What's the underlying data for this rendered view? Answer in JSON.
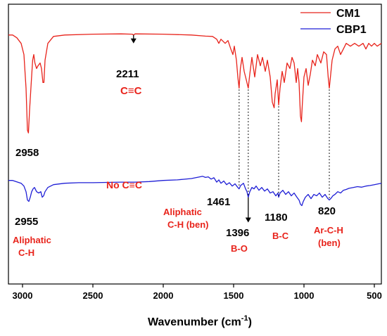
{
  "chart_data": {
    "type": "line",
    "xlabel": "Wavenumber (cm",
    "xlabel_sup": "-1",
    "xlabel_close": ")",
    "ylabel": "",
    "xlim": [
      3100,
      450
    ],
    "x_reversed": true,
    "x_ticks": [
      {
        "value": 3000,
        "label": "3000"
      },
      {
        "value": 2500,
        "label": "2500"
      },
      {
        "value": 2000,
        "label": "2000"
      },
      {
        "value": 1500,
        "label": "1500"
      },
      {
        "value": 1000,
        "label": "1000"
      },
      {
        "value": 500,
        "label": "500"
      }
    ],
    "ylim": [
      0,
      1
    ],
    "y_ticks_shown": false,
    "grid": false,
    "legend_placement": "top-right",
    "series": [
      {
        "name": "CM1",
        "color": "#e8231b",
        "points": [
          [
            3100,
            0.89
          ],
          [
            3070,
            0.89
          ],
          [
            3040,
            0.88
          ],
          [
            3010,
            0.86
          ],
          [
            2990,
            0.82
          ],
          [
            2975,
            0.7
          ],
          [
            2965,
            0.55
          ],
          [
            2958,
            0.54
          ],
          [
            2950,
            0.62
          ],
          [
            2938,
            0.72
          ],
          [
            2928,
            0.8
          ],
          [
            2920,
            0.82
          ],
          [
            2912,
            0.79
          ],
          [
            2900,
            0.77
          ],
          [
            2890,
            0.78
          ],
          [
            2875,
            0.79
          ],
          [
            2865,
            0.77
          ],
          [
            2855,
            0.72
          ],
          [
            2848,
            0.72
          ],
          [
            2840,
            0.8
          ],
          [
            2820,
            0.86
          ],
          [
            2780,
            0.885
          ],
          [
            2700,
            0.89
          ],
          [
            2500,
            0.893
          ],
          [
            2300,
            0.894
          ],
          [
            2220,
            0.893
          ],
          [
            2211,
            0.89
          ],
          [
            2200,
            0.894
          ],
          [
            2000,
            0.893
          ],
          [
            1800,
            0.89
          ],
          [
            1700,
            0.886
          ],
          [
            1650,
            0.885
          ],
          [
            1620,
            0.875
          ],
          [
            1605,
            0.86
          ],
          [
            1590,
            0.875
          ],
          [
            1560,
            0.86
          ],
          [
            1540,
            0.87
          ],
          [
            1520,
            0.84
          ],
          [
            1505,
            0.82
          ],
          [
            1495,
            0.85
          ],
          [
            1480,
            0.8
          ],
          [
            1470,
            0.74
          ],
          [
            1461,
            0.7
          ],
          [
            1452,
            0.77
          ],
          [
            1440,
            0.81
          ],
          [
            1425,
            0.76
          ],
          [
            1410,
            0.73
          ],
          [
            1396,
            0.7
          ],
          [
            1385,
            0.75
          ],
          [
            1370,
            0.81
          ],
          [
            1350,
            0.74
          ],
          [
            1330,
            0.82
          ],
          [
            1310,
            0.78
          ],
          [
            1295,
            0.81
          ],
          [
            1275,
            0.76
          ],
          [
            1260,
            0.8
          ],
          [
            1240,
            0.74
          ],
          [
            1225,
            0.65
          ],
          [
            1212,
            0.63
          ],
          [
            1205,
            0.68
          ],
          [
            1190,
            0.73
          ],
          [
            1180,
            0.64
          ],
          [
            1170,
            0.7
          ],
          [
            1155,
            0.76
          ],
          [
            1140,
            0.72
          ],
          [
            1120,
            0.79
          ],
          [
            1100,
            0.77
          ],
          [
            1085,
            0.81
          ],
          [
            1070,
            0.79
          ],
          [
            1055,
            0.72
          ],
          [
            1045,
            0.77
          ],
          [
            1035,
            0.72
          ],
          [
            1025,
            0.6
          ],
          [
            1018,
            0.58
          ],
          [
            1012,
            0.64
          ],
          [
            1000,
            0.74
          ],
          [
            985,
            0.77
          ],
          [
            970,
            0.71
          ],
          [
            955,
            0.75
          ],
          [
            940,
            0.8
          ],
          [
            920,
            0.78
          ],
          [
            905,
            0.82
          ],
          [
            880,
            0.79
          ],
          [
            860,
            0.83
          ],
          [
            840,
            0.82
          ],
          [
            828,
            0.74
          ],
          [
            820,
            0.7
          ],
          [
            812,
            0.74
          ],
          [
            800,
            0.8
          ],
          [
            780,
            0.84
          ],
          [
            760,
            0.85
          ],
          [
            740,
            0.82
          ],
          [
            720,
            0.84
          ],
          [
            700,
            0.86
          ],
          [
            670,
            0.85
          ],
          [
            640,
            0.86
          ],
          [
            610,
            0.85
          ],
          [
            580,
            0.86
          ],
          [
            560,
            0.84
          ],
          [
            540,
            0.86
          ],
          [
            520,
            0.85
          ],
          [
            500,
            0.86
          ],
          [
            480,
            0.85
          ],
          [
            450,
            0.86
          ]
        ]
      },
      {
        "name": "CBP1",
        "color": "#1f1fd6",
        "points": [
          [
            3100,
            0.37
          ],
          [
            3070,
            0.37
          ],
          [
            3040,
            0.365
          ],
          [
            3010,
            0.36
          ],
          [
            2990,
            0.35
          ],
          [
            2975,
            0.33
          ],
          [
            2965,
            0.3
          ],
          [
            2955,
            0.295
          ],
          [
            2945,
            0.31
          ],
          [
            2935,
            0.33
          ],
          [
            2925,
            0.34
          ],
          [
            2915,
            0.345
          ],
          [
            2900,
            0.33
          ],
          [
            2885,
            0.325
          ],
          [
            2870,
            0.33
          ],
          [
            2860,
            0.31
          ],
          [
            2850,
            0.315
          ],
          [
            2840,
            0.33
          ],
          [
            2820,
            0.345
          ],
          [
            2780,
            0.355
          ],
          [
            2700,
            0.36
          ],
          [
            2600,
            0.362
          ],
          [
            2500,
            0.362
          ],
          [
            2400,
            0.363
          ],
          [
            2300,
            0.364
          ],
          [
            2200,
            0.364
          ],
          [
            2100,
            0.366
          ],
          [
            2000,
            0.37
          ],
          [
            1900,
            0.372
          ],
          [
            1800,
            0.377
          ],
          [
            1750,
            0.382
          ],
          [
            1720,
            0.385
          ],
          [
            1700,
            0.381
          ],
          [
            1680,
            0.383
          ],
          [
            1660,
            0.375
          ],
          [
            1640,
            0.38
          ],
          [
            1620,
            0.364
          ],
          [
            1605,
            0.372
          ],
          [
            1590,
            0.36
          ],
          [
            1570,
            0.368
          ],
          [
            1550,
            0.355
          ],
          [
            1530,
            0.362
          ],
          [
            1510,
            0.35
          ],
          [
            1490,
            0.358
          ],
          [
            1470,
            0.345
          ],
          [
            1461,
            0.34
          ],
          [
            1450,
            0.352
          ],
          [
            1430,
            0.36
          ],
          [
            1415,
            0.34
          ],
          [
            1405,
            0.33
          ],
          [
            1396,
            0.31
          ],
          [
            1385,
            0.33
          ],
          [
            1370,
            0.345
          ],
          [
            1355,
            0.34
          ],
          [
            1340,
            0.35
          ],
          [
            1320,
            0.335
          ],
          [
            1300,
            0.345
          ],
          [
            1280,
            0.332
          ],
          [
            1260,
            0.34
          ],
          [
            1240,
            0.325
          ],
          [
            1220,
            0.33
          ],
          [
            1200,
            0.315
          ],
          [
            1185,
            0.325
          ],
          [
            1180,
            0.31
          ],
          [
            1170,
            0.325
          ],
          [
            1150,
            0.335
          ],
          [
            1130,
            0.32
          ],
          [
            1110,
            0.33
          ],
          [
            1090,
            0.315
          ],
          [
            1070,
            0.325
          ],
          [
            1050,
            0.31
          ],
          [
            1035,
            0.3
          ],
          [
            1025,
            0.285
          ],
          [
            1015,
            0.28
          ],
          [
            1005,
            0.295
          ],
          [
            990,
            0.31
          ],
          [
            970,
            0.32
          ],
          [
            950,
            0.305
          ],
          [
            930,
            0.32
          ],
          [
            910,
            0.315
          ],
          [
            890,
            0.325
          ],
          [
            870,
            0.31
          ],
          [
            850,
            0.32
          ],
          [
            830,
            0.305
          ],
          [
            820,
            0.3
          ],
          [
            810,
            0.305
          ],
          [
            795,
            0.315
          ],
          [
            780,
            0.32
          ],
          [
            760,
            0.33
          ],
          [
            740,
            0.325
          ],
          [
            720,
            0.335
          ],
          [
            700,
            0.338
          ],
          [
            680,
            0.342
          ],
          [
            650,
            0.345
          ],
          [
            620,
            0.348
          ],
          [
            590,
            0.346
          ],
          [
            560,
            0.35
          ],
          [
            530,
            0.352
          ],
          [
            500,
            0.355
          ],
          [
            470,
            0.358
          ],
          [
            450,
            0.36
          ]
        ]
      }
    ],
    "dotted_lines": [
      {
        "x": 1461,
        "from_series": 0,
        "to_series": 1
      },
      {
        "x": 1396,
        "from_series": 0,
        "to_series": 1
      },
      {
        "x": 1180,
        "from_series": 0,
        "to_series": 1
      },
      {
        "x": 820,
        "from_series": 0,
        "to_series": 1
      }
    ],
    "arrows": [
      {
        "x": 2211,
        "series": 0,
        "length_frac": 0.03
      },
      {
        "x": 1396,
        "series": 1,
        "length_frac": 0.09
      }
    ],
    "annotations": {
      "p2958": "2958",
      "p2211": "2211",
      "cc_top": "C≡C",
      "no_cc": "No  C≡C",
      "p2955": "2955",
      "aliphatic_ch": [
        "Aliphatic",
        "C-H"
      ],
      "p1461": "1461",
      "aliphatic_ch_ben": [
        "Aliphatic",
        "C-H (ben)"
      ],
      "p1396": "1396",
      "bo": "B-O",
      "p1180": "1180",
      "bc": "B-C",
      "p820": "820",
      "arch_ben": [
        "Ar-C-H",
        "(ben)"
      ]
    }
  }
}
